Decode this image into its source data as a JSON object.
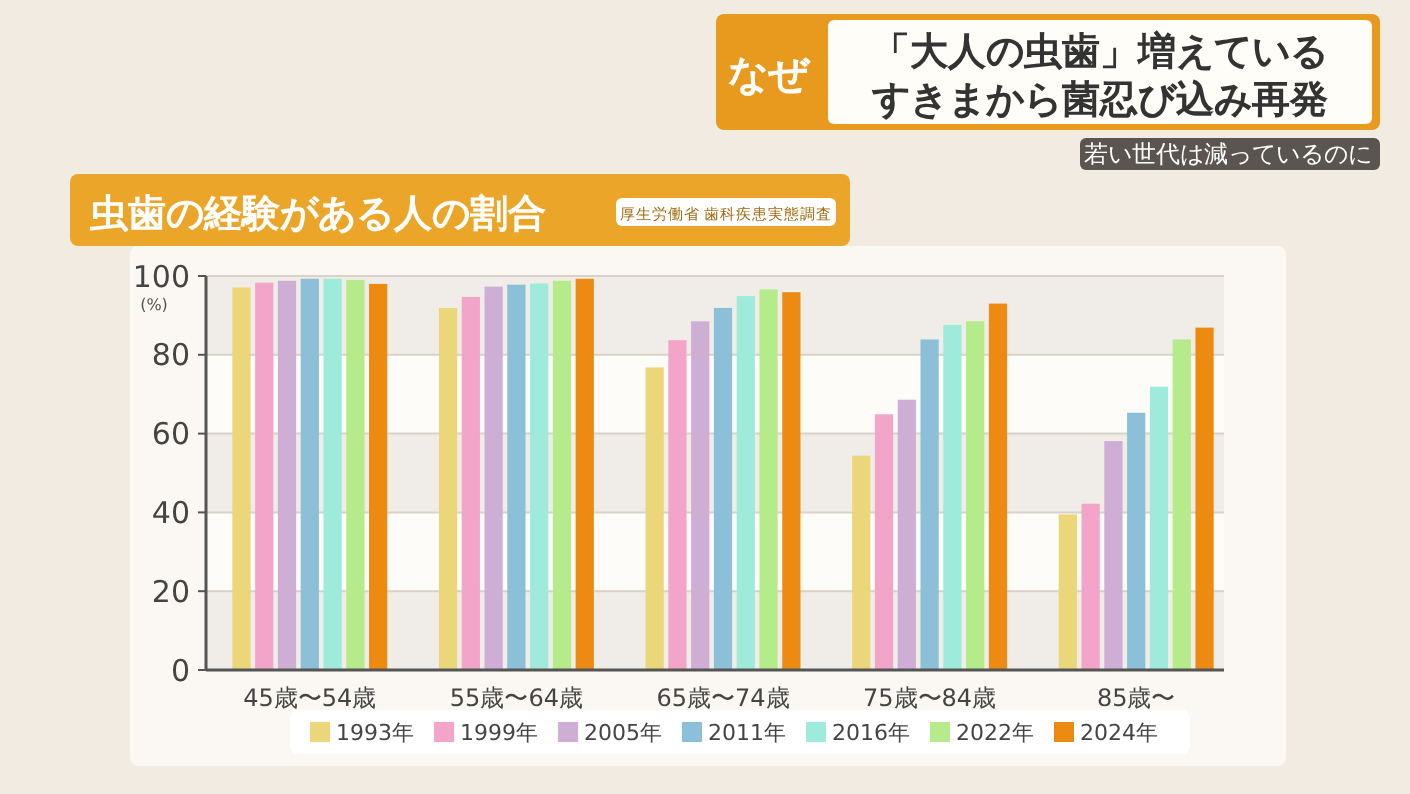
{
  "chart_data": {
    "type": "bar",
    "title": "「大人の虫歯」増えている",
    "subtitle": "若い世代は減っているのに",
    "annotations": [
      "なぜ",
      "すきまから菌忍び込み再発",
      "虫歯の経験がある人の割合",
      "厚生労働省 歯科疾患実態調査"
    ],
    "ylabel": "(%)",
    "categories": [
      "45歳〜54歳",
      "55歳〜64歳",
      "65歳〜74歳",
      "75歳〜84歳",
      "85歳〜"
    ],
    "series": [
      {
        "name": "1993年",
        "color": "#ebd77a",
        "values": [
          97.1,
          91.9,
          76.8,
          54.4,
          39.5
        ]
      },
      {
        "name": "1999年",
        "color": "#f2a5c8",
        "values": [
          98.3,
          94.7,
          83.7,
          64.9,
          42.2
        ]
      },
      {
        "name": "2005年",
        "color": "#cfaed6",
        "values": [
          98.8,
          97.3,
          88.5,
          68.6,
          58.1
        ]
      },
      {
        "name": "2011年",
        "color": "#8cbfd8",
        "values": [
          99.3,
          97.8,
          91.9,
          83.9,
          65.3
        ]
      },
      {
        "name": "2016年",
        "color": "#9eeadb",
        "values": [
          99.3,
          98.1,
          94.9,
          87.6,
          71.9
        ]
      },
      {
        "name": "2022年",
        "color": "#b5eb8a",
        "values": [
          99,
          98.8,
          96.6,
          88.5,
          83.9
        ]
      },
      {
        "name": "2024年",
        "color": "#ec8a12",
        "values": [
          98,
          99.3,
          95.9,
          93,
          86.9
        ]
      }
    ],
    "ylim": [
      0,
      100
    ],
    "yticks": [
      0,
      20,
      40,
      60,
      80,
      100
    ],
    "grid": "y",
    "legend": "bottom"
  }
}
